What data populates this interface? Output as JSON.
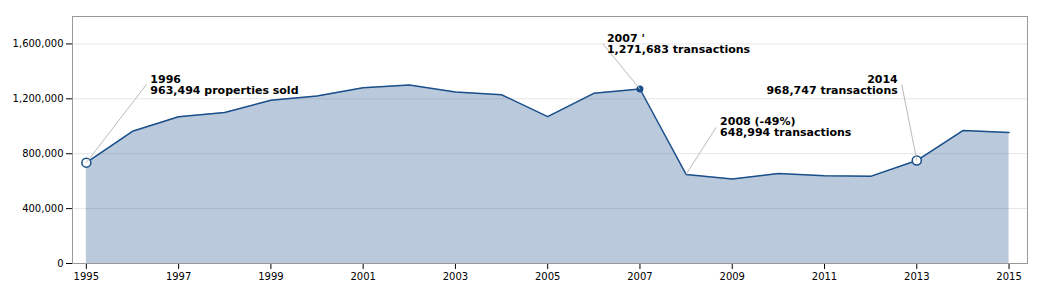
{
  "chart_data": {
    "type": "area",
    "x": [
      1995,
      1996,
      1997,
      1998,
      1999,
      2000,
      2001,
      2002,
      2003,
      2004,
      2005,
      2006,
      2007,
      2008,
      2009,
      2010,
      2011,
      2012,
      2013,
      2014,
      2015
    ],
    "values": [
      735000,
      963494,
      1070000,
      1100000,
      1190000,
      1220000,
      1280000,
      1300000,
      1250000,
      1230000,
      1070000,
      1240000,
      1271683,
      648994,
      615000,
      655000,
      640000,
      635000,
      750000,
      968747,
      955000
    ],
    "color": "#1a4f8a",
    "xlim": [
      1994.7,
      2015.4
    ],
    "ylim": [
      0,
      1800000
    ],
    "xticks": [
      1995,
      1997,
      1999,
      2001,
      2003,
      2005,
      2007,
      2009,
      2011,
      2013,
      2015
    ],
    "yticks": [
      0,
      {
        "value": 400000,
        "label": "400,000"
      },
      {
        "value": 800000,
        "label": "800,000"
      },
      {
        "value": 1200000,
        "label": "1,200,000"
      },
      {
        "value": 1600000,
        "label": "1,600,000"
      }
    ],
    "grid": true,
    "highlights": [
      {
        "x": 1995,
        "y": 735000,
        "marker": "open"
      },
      {
        "x": 2007,
        "y": 1271683,
        "marker": "filled"
      },
      {
        "x": 2013,
        "y": 750000,
        "marker": "open"
      }
    ],
    "annotations": [
      {
        "text": "1996\n963,494 properties sold",
        "x": 1995,
        "y": 735000
      },
      {
        "text": "2007 '\n1,271,683 transactions",
        "x": 2007,
        "y": 1271683
      },
      {
        "text": "2008 (-49%)\n648,994 transactions",
        "x": 2008,
        "y": 648994
      },
      {
        "text": "2014\n968,747 transactions",
        "x": 2013,
        "y": 750000
      }
    ]
  }
}
